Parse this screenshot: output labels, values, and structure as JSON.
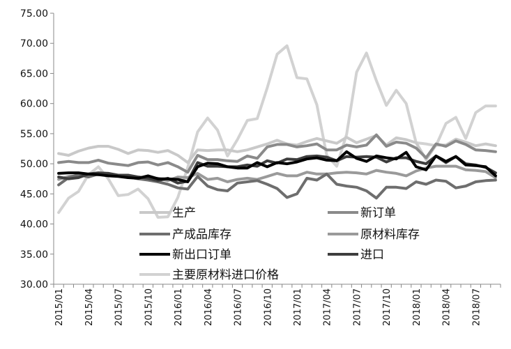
{
  "chart_data": {
    "type": "line",
    "title": "",
    "xlabel": "",
    "ylabel": "",
    "ylim": [
      30,
      75
    ],
    "yticks": [
      "30.00",
      "35.00",
      "40.00",
      "45.00",
      "50.00",
      "55.00",
      "60.00",
      "65.00",
      "70.00",
      "75.00"
    ],
    "grid": false,
    "legend_position": "inside-lower-center",
    "x": [
      "2015/01",
      "2015/02",
      "2015/03",
      "2015/04",
      "2015/05",
      "2015/06",
      "2015/07",
      "2015/08",
      "2015/09",
      "2015/10",
      "2015/11",
      "2015/12",
      "2016/01",
      "2016/02",
      "2016/03",
      "2016/04",
      "2016/05",
      "2016/06",
      "2016/07",
      "2016/08",
      "2016/09",
      "2016/10",
      "2016/11",
      "2016/12",
      "2017/01",
      "2017/02",
      "2017/03",
      "2017/04",
      "2017/05",
      "2017/06",
      "2017/07",
      "2017/08",
      "2017/09",
      "2017/10",
      "2017/11",
      "2017/12",
      "2018/01",
      "2018/02",
      "2018/03",
      "2018/04",
      "2018/05",
      "2018/06",
      "2018/07",
      "2018/08",
      "2018/09"
    ],
    "x_tick_labels": [
      "2015/01",
      "2015/04",
      "2015/07",
      "2015/10",
      "2016/01",
      "2016/04",
      "2016/07",
      "2016/10",
      "2017/01",
      "2017/04",
      "2017/07",
      "2017/10",
      "2018/01",
      "2018/04",
      "2018/07"
    ],
    "series": [
      {
        "name": "生产",
        "color": "#c9c9c9",
        "values": [
          51.7,
          51.4,
          52.1,
          52.6,
          52.9,
          52.9,
          52.4,
          51.7,
          52.3,
          52.2,
          51.9,
          52.2,
          51.4,
          50.2,
          52.3,
          52.2,
          52.3,
          52.3,
          52.0,
          52.3,
          52.8,
          53.3,
          53.9,
          53.3,
          53.1,
          53.7,
          54.2,
          53.8,
          53.4,
          54.4,
          53.5,
          54.1,
          54.7,
          53.1,
          54.3,
          54.0,
          53.5,
          50.7,
          53.1,
          53.1,
          54.1,
          53.6,
          53.0,
          53.3,
          53.0
        ]
      },
      {
        "name": "新订单",
        "color": "#8a8a8a",
        "values": [
          50.2,
          50.4,
          50.2,
          50.2,
          50.6,
          50.1,
          49.9,
          49.7,
          50.2,
          50.3,
          49.8,
          50.2,
          49.5,
          48.6,
          51.4,
          50.7,
          50.7,
          50.5,
          50.4,
          51.3,
          50.9,
          52.8,
          53.2,
          53.2,
          52.8,
          53.0,
          53.3,
          52.3,
          52.3,
          53.1,
          52.8,
          53.1,
          54.8,
          52.9,
          53.6,
          53.4,
          52.6,
          51.0,
          53.3,
          52.9,
          53.8,
          53.2,
          52.3,
          52.2,
          52.0
        ]
      },
      {
        "name": "产成品库存",
        "color": "#6e6e6e",
        "values": [
          46.5,
          47.7,
          48.2,
          47.8,
          48.3,
          48.4,
          48.0,
          47.8,
          47.5,
          47.3,
          47.0,
          46.6,
          46.0,
          45.8,
          47.9,
          46.3,
          45.7,
          45.5,
          46.8,
          47.0,
          47.2,
          46.6,
          45.9,
          44.4,
          45.0,
          47.6,
          47.3,
          48.3,
          46.6,
          46.3,
          46.1,
          45.5,
          44.3,
          46.1,
          46.1,
          45.9,
          47.0,
          46.6,
          47.3,
          47.1,
          46.0,
          46.3,
          47.0,
          47.2,
          47.3
        ]
      },
      {
        "name": "原材料库存",
        "color": "#9a9a9a",
        "values": [
          47.4,
          47.9,
          48.0,
          48.2,
          48.2,
          48.1,
          48.0,
          47.7,
          47.8,
          47.6,
          47.6,
          47.2,
          47.8,
          47.7,
          48.4,
          47.4,
          47.6,
          47.0,
          47.4,
          47.6,
          47.4,
          47.9,
          48.4,
          48.0,
          48.0,
          48.6,
          48.3,
          48.3,
          48.5,
          48.6,
          48.5,
          48.3,
          48.9,
          48.6,
          48.4,
          48.0,
          48.8,
          49.3,
          49.6,
          49.6,
          49.6,
          49.0,
          48.9,
          48.7,
          47.7
        ]
      },
      {
        "name": "新出口订单",
        "color": "#000000",
        "values": [
          48.4,
          48.5,
          48.5,
          48.3,
          48.2,
          48.0,
          47.9,
          47.7,
          47.6,
          48.0,
          47.5,
          47.5,
          47.4,
          47.0,
          49.5,
          50.1,
          50.0,
          49.5,
          49.3,
          49.3,
          50.2,
          49.5,
          50.2,
          50.0,
          50.3,
          50.8,
          51.0,
          50.6,
          50.5,
          52.0,
          50.9,
          50.4,
          51.3,
          51.0,
          50.8,
          51.9,
          49.5,
          49.0,
          51.3,
          50.4,
          51.2,
          49.8,
          49.7,
          49.5,
          48.0
        ]
      },
      {
        "name": "进口",
        "color": "#3d3d3d",
        "values": [
          47.8,
          47.5,
          47.7,
          48.3,
          48.5,
          48.4,
          48.1,
          48.1,
          47.8,
          47.6,
          47.2,
          47.6,
          46.8,
          47.1,
          50.2,
          49.6,
          49.6,
          49.5,
          49.5,
          49.8,
          49.6,
          50.5,
          50.1,
          50.8,
          50.7,
          51.2,
          51.3,
          51.1,
          50.5,
          51.2,
          51.1,
          51.2,
          51.1,
          50.3,
          51.0,
          51.0,
          50.4,
          50.0,
          51.3,
          50.2,
          51.2,
          50.0,
          49.8,
          49.4,
          48.5
        ]
      },
      {
        "name": "主要原材料进口价格",
        "color": "#d2d2d2",
        "values": [
          41.9,
          44.3,
          45.4,
          48.2,
          49.5,
          47.5,
          44.7,
          44.9,
          45.8,
          44.2,
          41.1,
          41.2,
          44.4,
          49.4,
          55.3,
          57.6,
          55.6,
          51.3,
          54.0,
          57.2,
          57.5,
          62.6,
          68.2,
          69.6,
          64.3,
          64.1,
          59.8,
          51.4,
          49.6,
          54.9,
          65.2,
          68.4,
          63.8,
          59.7,
          62.2,
          60.0,
          53.5,
          53.3,
          53.0,
          56.7,
          57.7,
          54.2,
          58.5,
          59.6,
          59.6
        ]
      }
    ]
  }
}
